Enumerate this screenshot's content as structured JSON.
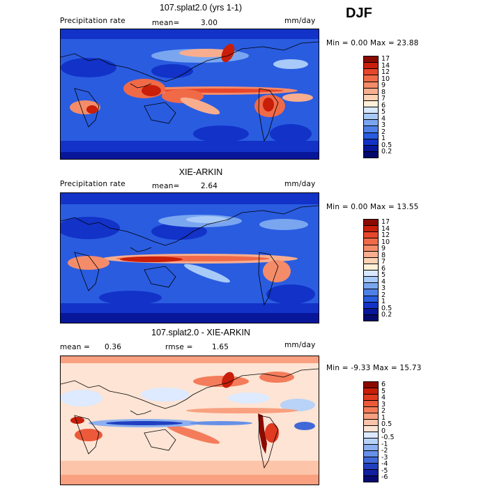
{
  "season": "DJF",
  "panels": [
    {
      "title": "107.splat2.0 (yrs 1-1)",
      "variable": "Precipitation rate",
      "stat1_label": "mean=",
      "stat1_value": "3.00",
      "stat2_label": "",
      "stat2_value": "",
      "units": "mm/day",
      "range": "Min =    0.00 Max =   23.88",
      "colorbar": {
        "labels": [
          "17",
          "14",
          "12",
          "10",
          "9",
          "8",
          "7",
          "6",
          "5",
          "4",
          "3",
          "2",
          "1",
          "0.5",
          "0.2"
        ],
        "colors": [
          "#8b0a00",
          "#c81e0a",
          "#e8462a",
          "#f06a48",
          "#f48c6a",
          "#f8ae8e",
          "#fcd2b4",
          "#fff0d8",
          "#d8e8ff",
          "#a8caf8",
          "#7aa6f0",
          "#4e80e8",
          "#2a5ce0",
          "#1232c8",
          "#08169a",
          "#050a6a"
        ]
      }
    },
    {
      "title": "XIE-ARKIN",
      "variable": "Precipitation rate",
      "stat1_label": "mean=",
      "stat1_value": "2.64",
      "stat2_label": "",
      "stat2_value": "",
      "units": "mm/day",
      "range": "Min =    0.00 Max =   13.55",
      "colorbar": {
        "labels": [
          "17",
          "14",
          "12",
          "10",
          "9",
          "8",
          "7",
          "6",
          "5",
          "4",
          "3",
          "2",
          "1",
          "0.5",
          "0.2"
        ],
        "colors": [
          "#8b0a00",
          "#c81e0a",
          "#e8462a",
          "#f06a48",
          "#f48c6a",
          "#f8ae8e",
          "#fcd2b4",
          "#fff0d8",
          "#d8e8ff",
          "#a8caf8",
          "#7aa6f0",
          "#4e80e8",
          "#2a5ce0",
          "#1232c8",
          "#08169a",
          "#050a6a"
        ]
      }
    },
    {
      "title": "107.splat2.0 - XIE-ARKIN",
      "variable": "",
      "stat1_label": "mean =",
      "stat1_value": "0.36",
      "stat2_label": "rmse =",
      "stat2_value": "1.65",
      "units": "mm/day",
      "range": "Min =  -9.33 Max =   15.73",
      "colorbar": {
        "labels": [
          "6",
          "5",
          "4",
          "3",
          "2",
          "1",
          "0.5",
          "0",
          "-0.5",
          "-1",
          "-2",
          "-3",
          "-4",
          "-5",
          "-6"
        ],
        "colors": [
          "#8b0a00",
          "#c81e0a",
          "#e03a20",
          "#ec5a3a",
          "#f47c5a",
          "#f8a080",
          "#fcc4a8",
          "#fde4d4",
          "#ddeaff",
          "#b8d2f8",
          "#8cb0f0",
          "#6690e8",
          "#4068d8",
          "#2040c0",
          "#101ea0",
          "#060a70"
        ]
      }
    }
  ]
}
